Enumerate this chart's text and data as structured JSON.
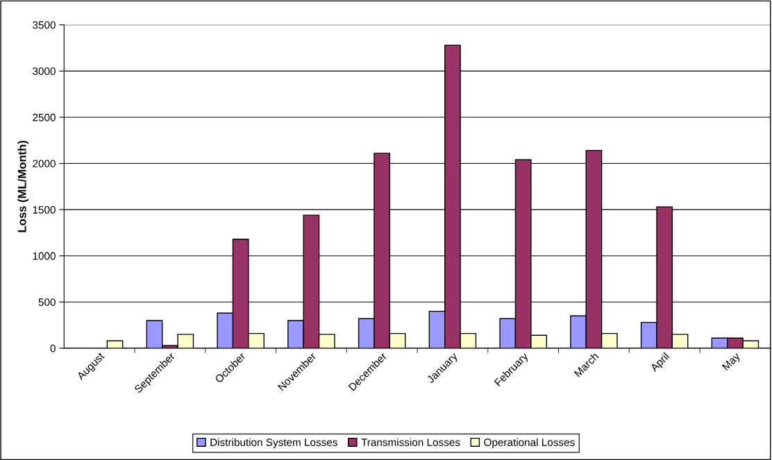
{
  "chart_data": {
    "type": "bar",
    "ylabel": "Loss (ML/Month)",
    "categories": [
      "August",
      "September",
      "October",
      "November",
      "December",
      "January",
      "February",
      "March",
      "April",
      "May"
    ],
    "series": [
      {
        "name": "Distribution System Losses",
        "color": "#9999ff",
        "values": [
          null,
          300,
          380,
          300,
          320,
          400,
          320,
          350,
          280,
          110
        ]
      },
      {
        "name": "Transmission Losses",
        "color": "#993366",
        "values": [
          null,
          30,
          1180,
          1440,
          2110,
          3280,
          2040,
          2140,
          1530,
          110
        ]
      },
      {
        "name": "Operational Losses",
        "color": "#ffffcc",
        "values": [
          80,
          150,
          160,
          150,
          160,
          160,
          140,
          160,
          150,
          80
        ]
      }
    ],
    "ylim": [
      0,
      3500
    ],
    "yticks": [
      0,
      500,
      1000,
      1500,
      2000,
      2500,
      3000,
      3500
    ],
    "grid": "y",
    "legend": "bottom"
  }
}
